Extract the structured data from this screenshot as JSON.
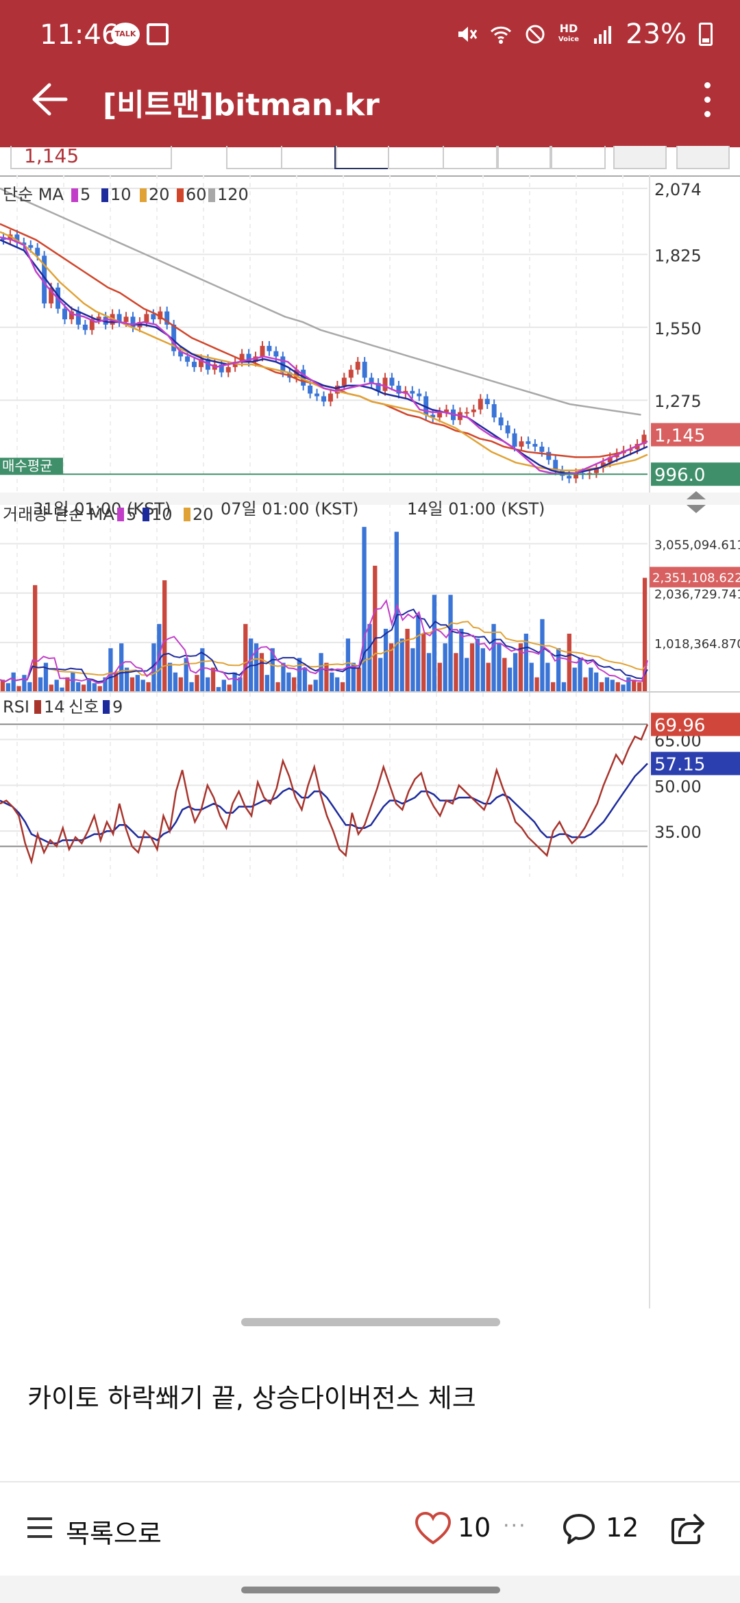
{
  "status_bar": {
    "time": "11:46",
    "talk_badge": "TALK",
    "hd_label": "HD",
    "voice_label": "Voice",
    "battery": "23%"
  },
  "app_bar": {
    "title": "[비트맨]bitman.kr"
  },
  "chart_toolbar": {
    "price_value": "1,145"
  },
  "chart_data": [
    {
      "type": "line",
      "title": "단순 MA",
      "legend": [
        "5",
        "10",
        "20",
        "60",
        "120"
      ],
      "series_colors": {
        "ma5": "#c23ec9",
        "ma10": "#1c2a9c",
        "ma20": "#e0a234",
        "ma60": "#d1452a",
        "ma120": "#a8a8a8"
      },
      "y_ticks": [
        "2,074",
        "1,825",
        "1,550",
        "1,275"
      ],
      "ylim": [
        950,
        2074
      ],
      "current_price": "1,145",
      "avg_buy_label": "매수평균",
      "avg_buy_value": "996.0",
      "x_ticks": [
        "31일 01:00 (KST)",
        "07일 01:00 (KST)",
        "14일 01:00 (KST)"
      ],
      "candles_close": [
        1880,
        1900,
        1870,
        1860,
        1850,
        1820,
        1640,
        1700,
        1620,
        1580,
        1610,
        1560,
        1540,
        1580,
        1590,
        1560,
        1600,
        1570,
        1590,
        1550,
        1570,
        1600,
        1580,
        1610,
        1560,
        1460,
        1440,
        1420,
        1400,
        1430,
        1390,
        1410,
        1380,
        1400,
        1420,
        1450,
        1420,
        1440,
        1480,
        1460,
        1440,
        1380,
        1360,
        1390,
        1330,
        1300,
        1290,
        1270,
        1300,
        1330,
        1360,
        1390,
        1420,
        1360,
        1340,
        1310,
        1360,
        1330,
        1300,
        1310,
        1300,
        1290,
        1220,
        1210,
        1230,
        1240,
        1200,
        1230,
        1230,
        1240,
        1280,
        1260,
        1210,
        1180,
        1150,
        1100,
        1120,
        1110,
        1100,
        1080,
        1050,
        1010,
        990,
        980,
        1000,
        995,
        1000,
        1020,
        1040,
        1060,
        1075,
        1085,
        1090,
        1110,
        1145
      ],
      "ma5": [
        1890,
        1880,
        1860,
        1760,
        1700,
        1650,
        1600,
        1590,
        1570,
        1580,
        1570,
        1560,
        1570,
        1560,
        1520,
        1460,
        1440,
        1420,
        1400,
        1410,
        1420,
        1430,
        1440,
        1430,
        1420,
        1380,
        1350,
        1320,
        1310,
        1320,
        1330,
        1340,
        1330,
        1310,
        1300,
        1240,
        1230,
        1230,
        1220,
        1210,
        1170,
        1140,
        1120,
        1090,
        1050,
        1010,
        1000,
        995,
        1000,
        1020,
        1040,
        1060,
        1080,
        1100,
        1120
      ],
      "ma10": [
        1880,
        1860,
        1840,
        1780,
        1720,
        1660,
        1620,
        1600,
        1580,
        1570,
        1570,
        1560,
        1560,
        1550,
        1520,
        1480,
        1450,
        1430,
        1420,
        1410,
        1420,
        1420,
        1430,
        1420,
        1400,
        1370,
        1350,
        1330,
        1320,
        1330,
        1330,
        1320,
        1300,
        1290,
        1280,
        1260,
        1240,
        1230,
        1220,
        1210,
        1180,
        1150,
        1120,
        1090,
        1060,
        1030,
        1010,
        1000,
        1000,
        1010,
        1020,
        1040,
        1060,
        1080,
        1100
      ],
      "ma20": [
        1910,
        1890,
        1860,
        1820,
        1770,
        1720,
        1680,
        1640,
        1610,
        1590,
        1570,
        1550,
        1530,
        1510,
        1490,
        1470,
        1450,
        1440,
        1430,
        1420,
        1410,
        1410,
        1400,
        1390,
        1380,
        1360,
        1340,
        1320,
        1310,
        1300,
        1290,
        1270,
        1260,
        1250,
        1240,
        1230,
        1210,
        1190,
        1170,
        1140,
        1110,
        1080,
        1060,
        1040,
        1030,
        1020,
        1015,
        1010,
        1010,
        1015,
        1020,
        1030,
        1040,
        1050,
        1070
      ],
      "ma60": [
        1940,
        1920,
        1900,
        1880,
        1850,
        1820,
        1790,
        1760,
        1730,
        1700,
        1680,
        1650,
        1620,
        1600,
        1570,
        1540,
        1510,
        1490,
        1470,
        1450,
        1430,
        1420,
        1400,
        1380,
        1370,
        1350,
        1340,
        1330,
        1320,
        1300,
        1290,
        1270,
        1260,
        1240,
        1220,
        1210,
        1190,
        1180,
        1160,
        1150,
        1130,
        1120,
        1100,
        1090,
        1080,
        1075,
        1070,
        1065,
        1060,
        1060,
        1062,
        1070,
        1080,
        1100,
        1120
      ],
      "ma120": [
        2074,
        2040,
        2010,
        1980,
        1950,
        1920,
        1890,
        1860,
        1830,
        1800,
        1770,
        1740,
        1710,
        1680,
        1650,
        1620,
        1590,
        1570,
        1540,
        1520,
        1500,
        1480,
        1460,
        1440,
        1420,
        1400,
        1380,
        1360,
        1340,
        1320,
        1300,
        1280,
        1260,
        1250,
        1240,
        1230,
        1220
      ]
    },
    {
      "type": "bar",
      "title": "거래량 단순 MA",
      "legend": [
        "5",
        "10",
        "20"
      ],
      "series_colors": {
        "up": "#c9473c",
        "down": "#3a74d6",
        "ma5": "#c23ec9",
        "ma10": "#1c2a9c",
        "ma20": "#e0a234"
      },
      "y_ticks": [
        "3,055,094.611",
        "2,036,729.741",
        "1,018,364.870"
      ],
      "current_volume": "2,351,108.622",
      "ylim": [
        0,
        3600000
      ],
      "values": [
        250000,
        180000,
        400000,
        120000,
        350000,
        200000,
        2200000,
        300000,
        600000,
        150000,
        250000,
        90000,
        300000,
        400000,
        200000,
        150000,
        250000,
        180000,
        120000,
        300000,
        900000,
        400000,
        1000000,
        500000,
        300000,
        350000,
        250000,
        200000,
        1000000,
        1400000,
        2300000,
        600000,
        400000,
        300000,
        700000,
        200000,
        350000,
        900000,
        300000,
        500000,
        100000,
        250000,
        150000,
        400000,
        300000,
        1400000,
        1100000,
        1000000,
        800000,
        350000,
        900000,
        200000,
        600000,
        400000,
        300000,
        700000,
        500000,
        150000,
        250000,
        800000,
        600000,
        400000,
        300000,
        200000,
        1100000,
        600000,
        500000,
        3400000,
        1400000,
        2600000,
        700000,
        1300000,
        1000000,
        3300000,
        1100000,
        1300000,
        900000,
        1600000,
        1200000,
        800000,
        2000000,
        600000,
        1000000,
        2000000,
        800000,
        1300000,
        700000,
        1000000,
        1100000,
        900000,
        600000,
        1400000,
        1000000,
        700000,
        500000,
        800000,
        1000000,
        1200000,
        600000,
        300000,
        1500000,
        600000,
        200000,
        900000,
        200000,
        1200000,
        500000,
        700000,
        300000,
        500000,
        400000,
        200000,
        300000,
        250000,
        200000,
        150000,
        300000,
        250000,
        200000,
        2351108
      ]
    },
    {
      "type": "line",
      "title": "RSI",
      "legend": [
        "14",
        "신호",
        "9"
      ],
      "series_colors": {
        "rsi": "#a8342c",
        "signal": "#1c2a9c"
      },
      "y_ticks": [
        "65.00",
        "50.00",
        "35.00"
      ],
      "ylim": [
        20,
        75
      ],
      "rsi_value": "69.96",
      "signal_value": "57.15",
      "rsi": [
        44,
        45,
        43,
        40,
        31,
        25,
        34,
        28,
        32,
        30,
        36,
        29,
        33,
        31,
        35,
        40,
        32,
        38,
        34,
        44,
        36,
        30,
        28,
        35,
        33,
        29,
        40,
        35,
        48,
        55,
        45,
        38,
        42,
        50,
        46,
        40,
        36,
        44,
        48,
        43,
        40,
        51,
        46,
        44,
        49,
        58,
        53,
        46,
        42,
        50,
        56,
        47,
        40,
        35,
        29,
        27,
        41,
        34,
        37,
        43,
        49,
        56,
        50,
        44,
        42,
        48,
        52,
        54,
        47,
        43,
        40,
        45,
        44,
        50,
        48,
        46,
        44,
        42,
        47,
        55,
        49,
        44,
        38,
        36,
        33,
        31,
        29,
        27,
        35,
        38,
        34,
        31,
        33,
        36,
        40,
        44,
        50,
        55,
        60,
        57,
        62,
        66,
        65,
        69.96
      ],
      "signal": [
        45,
        44,
        43,
        41,
        38,
        34,
        33,
        32,
        31,
        31,
        32,
        32,
        32,
        32,
        33,
        34,
        34,
        35,
        35,
        37,
        37,
        35,
        33,
        33,
        33,
        32,
        34,
        35,
        38,
        42,
        43,
        42,
        42,
        43,
        44,
        43,
        41,
        41,
        43,
        43,
        43,
        44,
        45,
        45,
        46,
        48,
        49,
        48,
        46,
        46,
        48,
        48,
        46,
        43,
        40,
        37,
        37,
        36,
        36,
        37,
        40,
        43,
        45,
        45,
        44,
        45,
        46,
        48,
        48,
        47,
        45,
        45,
        45,
        46,
        46,
        46,
        45,
        44,
        44,
        46,
        47,
        46,
        44,
        42,
        40,
        38,
        35,
        33,
        33,
        34,
        34,
        33,
        33,
        33,
        34,
        36,
        38,
        41,
        44,
        47,
        50,
        53,
        55,
        57.15
      ]
    }
  ],
  "post": {
    "text": "카이토 하락쐐기 끝, 상승다이버전스 체크"
  },
  "bottom_bar": {
    "list_label": "목록으로",
    "like_count": "10",
    "more_dots": "···",
    "comment_count": "12"
  }
}
